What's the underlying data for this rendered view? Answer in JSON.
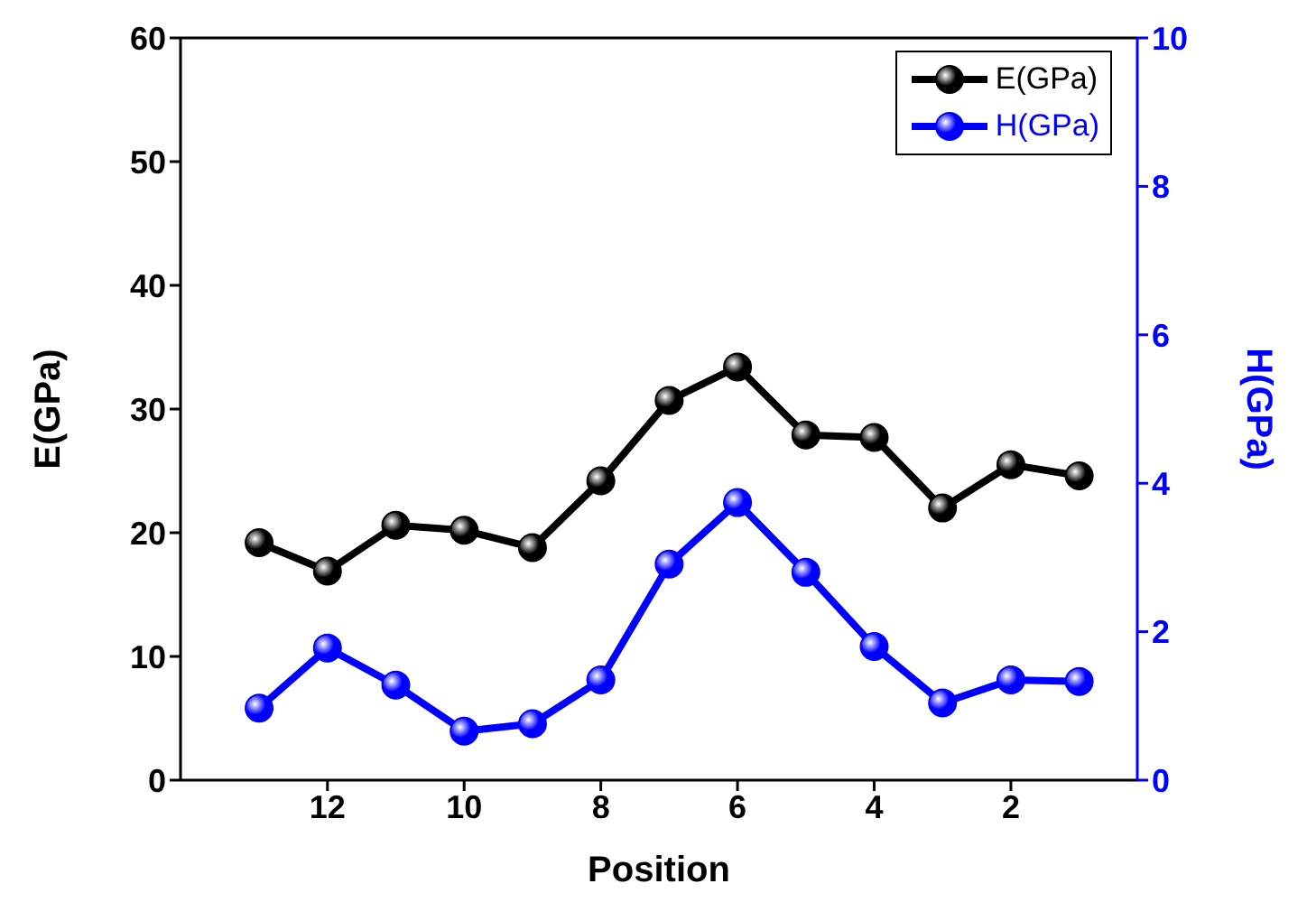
{
  "chart_data": {
    "type": "line",
    "xlabel": "Position",
    "ylabel": "E(GPa)",
    "y2label": "H(GPa)",
    "x": [
      13,
      12,
      11,
      10,
      9,
      8,
      7,
      6,
      5,
      4,
      3,
      2,
      1
    ],
    "xlim": [
      14.15,
      0.15
    ],
    "xticks": [
      12,
      10,
      8,
      6,
      4,
      2
    ],
    "ylim": [
      0,
      60
    ],
    "yticks": [
      0,
      10,
      20,
      30,
      40,
      50,
      60
    ],
    "y2lim": [
      0,
      10
    ],
    "y2ticks": [
      0,
      2,
      4,
      6,
      8,
      10
    ],
    "series": [
      {
        "name": "E(GPa)",
        "color": "#000000",
        "values": [
          19.2,
          16.9,
          20.6,
          20.2,
          18.8,
          24.2,
          30.7,
          33.4,
          27.9,
          27.7,
          22.0,
          25.5,
          24.6
        ]
      },
      {
        "name": "H(GPa)",
        "color": "#0000ff",
        "axis": "y2",
        "values": [
          0.97,
          1.78,
          1.28,
          0.66,
          0.76,
          1.35,
          2.91,
          3.74,
          2.8,
          1.8,
          1.04,
          1.35,
          1.33
        ]
      }
    ],
    "marker": "circle",
    "line_style": "solid",
    "grid": false,
    "legend": "top right"
  }
}
